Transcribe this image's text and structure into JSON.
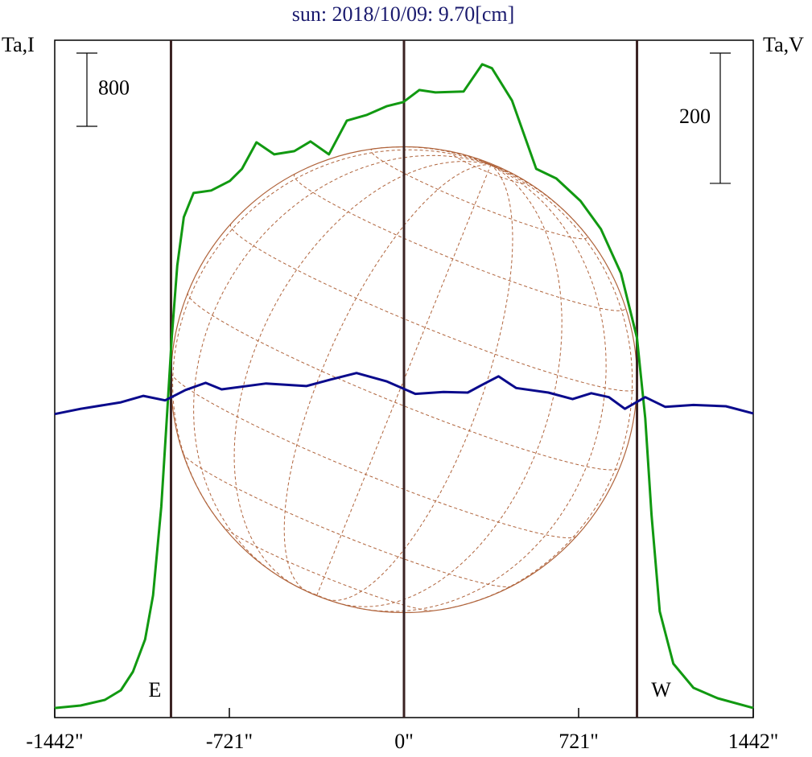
{
  "chart_data": {
    "type": "line",
    "title": "sun: 2018/10/09: 9.70[cm]",
    "y_label": "Ta,I",
    "y2_label": "Ta,V",
    "xlim": [
      -1442,
      1442
    ],
    "xticks": [
      {
        "value": -1442,
        "label": "-1442\""
      },
      {
        "value": -721,
        "label": "-721\""
      },
      {
        "value": 0,
        "label": "0\""
      },
      {
        "value": 721,
        "label": "721\""
      },
      {
        "value": 1442,
        "label": "1442\""
      }
    ],
    "ylim": [
      0,
      7400
    ],
    "y2lim": [
      -520,
      520
    ],
    "scale_bars": [
      {
        "value": 800,
        "axis": "y"
      },
      {
        "value": 200,
        "axis": "y2"
      }
    ],
    "limb_lines": [
      {
        "value": -962,
        "label": "E"
      },
      {
        "value": 0
      },
      {
        "value": 962,
        "label": "W"
      }
    ],
    "series": [
      {
        "name": "I",
        "color": "#119911",
        "x": [
          -1442,
          -1335,
          -1235,
          -1169,
          -1119,
          -1069,
          -1036,
          -1002,
          -979,
          -959,
          -936,
          -909,
          -869,
          -796,
          -719,
          -669,
          -609,
          -536,
          -453,
          -386,
          -310,
          -236,
          -153,
          -70,
          -3,
          63,
          130,
          246,
          323,
          363,
          446,
          546,
          629,
          729,
          813,
          896,
          962,
          996,
          1022,
          1056,
          1112,
          1195,
          1295,
          1442
        ],
        "values": [
          105,
          132,
          193,
          299,
          501,
          853,
          1336,
          2303,
          3270,
          4149,
          4940,
          5467,
          5731,
          5758,
          5863,
          5995,
          6285,
          6153,
          6188,
          6294,
          6153,
          6522,
          6584,
          6680,
          6724,
          6856,
          6830,
          6839,
          7137,
          7094,
          6742,
          5995,
          5889,
          5643,
          5336,
          4852,
          4149,
          3270,
          2215,
          1160,
          589,
          325,
          211,
          105
        ]
      },
      {
        "name": "V",
        "color": "#0a0a8c",
        "axis": "y2",
        "x": [
          -1442,
          -1335,
          -1169,
          -1076,
          -986,
          -902,
          -819,
          -753,
          -569,
          -403,
          -303,
          -196,
          -70,
          47,
          163,
          263,
          323,
          390,
          463,
          596,
          696,
          773,
          846,
          912,
          996,
          1079,
          1195,
          1329,
          1442
        ],
        "values": [
          -54,
          -46,
          -36,
          -26,
          -33,
          -17,
          -6,
          -16,
          -7,
          -11,
          -1,
          9,
          -4,
          -23,
          -20,
          -21,
          -9,
          4,
          -14,
          -21,
          -31,
          -22,
          -28,
          -46,
          -28,
          -43,
          -40,
          -42,
          -53
        ]
      }
    ]
  }
}
